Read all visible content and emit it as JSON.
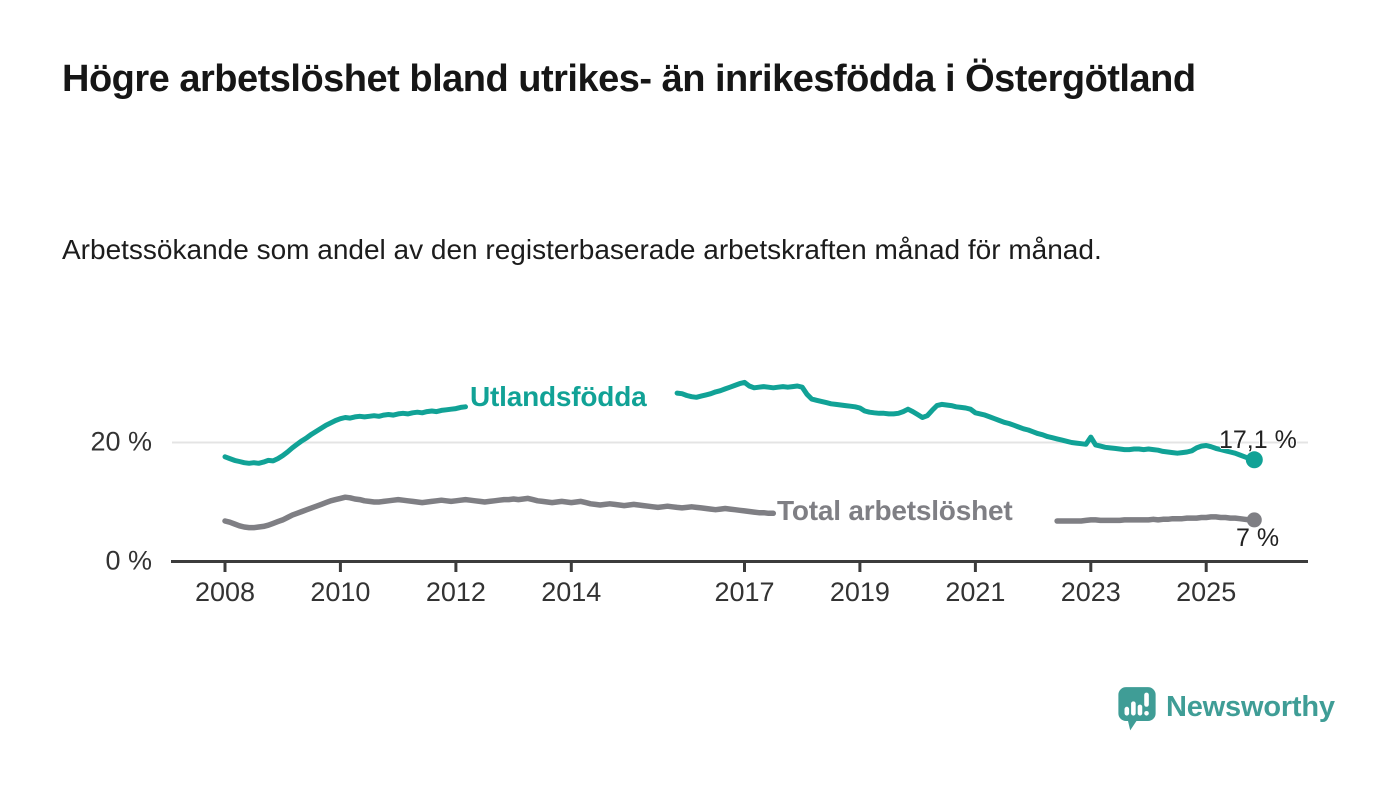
{
  "header": {
    "title": "Högre arbetslöshet bland utrikes- än inrikesfödda i Östergötland",
    "subtitle": "Arbetssökande som andel av den registerbaserade arbetskraften månad för månad."
  },
  "chart_data": {
    "type": "line",
    "x_unit": "month",
    "x_start": "2008-01",
    "x_end": "2025-11",
    "ylim": [
      0,
      32
    ],
    "grid": "single horizontal gridline at 20 %, baseline axis at 0 %",
    "legend_position": "inline labels interrupting the lines; value labels at line ends",
    "axis_color": "#3c3c3c",
    "grid_color": "#e4e4e4",
    "y_ticks": [
      {
        "value": 20,
        "label": "20 %",
        "gridline": true
      },
      {
        "value": 0,
        "label": "0 %",
        "axisline": true
      }
    ],
    "x_ticks": [
      {
        "label": "2008",
        "month_index": 0
      },
      {
        "label": "2010",
        "month_index": 24
      },
      {
        "label": "2012",
        "month_index": 48
      },
      {
        "label": "2014",
        "month_index": 72
      },
      {
        "label": "2017",
        "month_index": 108
      },
      {
        "label": "2019",
        "month_index": 132
      },
      {
        "label": "2021",
        "month_index": 156
      },
      {
        "label": "2023",
        "month_index": 180
      },
      {
        "label": "2025",
        "month_index": 204
      }
    ],
    "series": [
      {
        "name": "Utlandsfödda",
        "color": "#11a296",
        "end_label": "17,1 %",
        "end_value": 17.1,
        "label_gap_month_indices": [
          51,
          93
        ],
        "values": [
          17.6,
          17.3,
          17.0,
          16.8,
          16.6,
          16.5,
          16.6,
          16.5,
          16.7,
          17.0,
          16.9,
          17.3,
          17.8,
          18.4,
          19.1,
          19.7,
          20.3,
          20.8,
          21.4,
          21.9,
          22.4,
          22.9,
          23.3,
          23.7,
          24.0,
          24.2,
          24.1,
          24.3,
          24.4,
          24.3,
          24.4,
          24.5,
          24.4,
          24.6,
          24.7,
          24.6,
          24.8,
          24.9,
          24.8,
          25.0,
          25.1,
          25.0,
          25.2,
          25.3,
          25.2,
          25.4,
          25.5,
          25.6,
          25.7,
          25.9,
          26.0,
          26.1,
          26.2,
          26.2,
          26.3,
          26.3,
          26.4,
          26.4,
          26.5,
          26.5,
          26.6,
          26.7,
          26.8,
          26.9,
          27.0,
          27.1,
          27.0,
          27.1,
          27.2,
          27.3,
          27.2,
          27.4,
          27.5,
          27.6,
          27.5,
          27.7,
          27.8,
          27.7,
          27.9,
          28.0,
          27.9,
          28.0,
          28.1,
          28.0,
          28.1,
          28.2,
          28.3,
          28.2,
          28.3,
          28.4,
          28.3,
          28.4,
          28.5,
          28.4,
          28.3,
          28.2,
          27.9,
          27.7,
          27.6,
          27.8,
          28.0,
          28.2,
          28.5,
          28.7,
          29.0,
          29.3,
          29.6,
          29.9,
          30.1,
          29.5,
          29.2,
          29.3,
          29.4,
          29.3,
          29.2,
          29.3,
          29.4,
          29.3,
          29.4,
          29.5,
          29.3,
          28.1,
          27.3,
          27.1,
          26.9,
          26.7,
          26.5,
          26.4,
          26.3,
          26.2,
          26.1,
          26.0,
          25.8,
          25.3,
          25.1,
          25.0,
          24.9,
          24.9,
          24.8,
          24.8,
          24.9,
          25.2,
          25.6,
          25.2,
          24.7,
          24.2,
          24.5,
          25.4,
          26.2,
          26.4,
          26.3,
          26.2,
          26.0,
          25.9,
          25.8,
          25.6,
          25.0,
          24.8,
          24.6,
          24.3,
          24.0,
          23.7,
          23.4,
          23.2,
          22.9,
          22.6,
          22.3,
          22.1,
          21.8,
          21.5,
          21.3,
          21.0,
          20.8,
          20.6,
          20.4,
          20.2,
          20.0,
          19.9,
          19.8,
          19.7,
          20.9,
          19.6,
          19.4,
          19.2,
          19.1,
          19.0,
          18.9,
          18.8,
          18.8,
          18.9,
          18.9,
          18.8,
          18.9,
          18.8,
          18.7,
          18.5,
          18.4,
          18.3,
          18.2,
          18.3,
          18.4,
          18.6,
          19.1,
          19.4,
          19.5,
          19.3,
          19.0,
          18.8,
          18.6,
          18.4,
          18.2,
          17.9,
          17.6,
          17.3,
          17.1
        ]
      },
      {
        "name": "Total arbetslöshet",
        "color": "#7f7f84",
        "end_label": "7 %",
        "end_value": 7.0,
        "label_gap_month_indices": [
          115,
          172
        ],
        "values": [
          6.8,
          6.6,
          6.3,
          6.0,
          5.8,
          5.7,
          5.7,
          5.8,
          5.9,
          6.1,
          6.4,
          6.7,
          7.0,
          7.4,
          7.8,
          8.1,
          8.4,
          8.7,
          9.0,
          9.3,
          9.6,
          9.9,
          10.2,
          10.4,
          10.6,
          10.8,
          10.7,
          10.5,
          10.4,
          10.2,
          10.1,
          10.0,
          10.0,
          10.1,
          10.2,
          10.3,
          10.4,
          10.3,
          10.2,
          10.1,
          10.0,
          9.9,
          10.0,
          10.1,
          10.2,
          10.3,
          10.2,
          10.1,
          10.2,
          10.3,
          10.4,
          10.3,
          10.2,
          10.1,
          10.0,
          10.1,
          10.2,
          10.3,
          10.4,
          10.4,
          10.5,
          10.4,
          10.5,
          10.6,
          10.4,
          10.2,
          10.1,
          10.0,
          9.9,
          10.0,
          10.1,
          10.0,
          9.9,
          10.0,
          10.1,
          9.9,
          9.7,
          9.6,
          9.5,
          9.6,
          9.7,
          9.6,
          9.5,
          9.4,
          9.5,
          9.6,
          9.5,
          9.4,
          9.3,
          9.2,
          9.1,
          9.2,
          9.3,
          9.2,
          9.1,
          9.0,
          9.1,
          9.2,
          9.1,
          9.0,
          8.9,
          8.8,
          8.7,
          8.8,
          8.9,
          8.8,
          8.7,
          8.6,
          8.5,
          8.4,
          8.3,
          8.2,
          8.2,
          8.1,
          8.1,
          8.1,
          8.0,
          8.0,
          7.9,
          7.9,
          7.8,
          7.8,
          7.7,
          7.7,
          7.6,
          7.6,
          7.5,
          7.5,
          7.5,
          7.4,
          7.4,
          7.4,
          7.4,
          7.3,
          7.3,
          7.3,
          7.3,
          7.3,
          7.3,
          7.3,
          7.3,
          7.3,
          7.3,
          7.3,
          7.3,
          7.3,
          7.6,
          8.2,
          8.6,
          8.7,
          8.6,
          8.5,
          8.4,
          8.2,
          8.1,
          8.0,
          7.9,
          7.8,
          7.7,
          7.6,
          7.5,
          7.4,
          7.4,
          7.3,
          7.3,
          7.2,
          7.2,
          7.1,
          7.1,
          7.0,
          6.9,
          6.9,
          6.8,
          6.8,
          6.8,
          6.8,
          6.8,
          6.8,
          6.8,
          6.9,
          7.0,
          7.0,
          6.9,
          6.9,
          6.9,
          6.9,
          6.9,
          7.0,
          7.0,
          7.0,
          7.0,
          7.0,
          7.0,
          7.1,
          7.0,
          7.1,
          7.1,
          7.2,
          7.2,
          7.2,
          7.3,
          7.3,
          7.3,
          7.4,
          7.4,
          7.5,
          7.5,
          7.4,
          7.4,
          7.3,
          7.3,
          7.2,
          7.1,
          7.0,
          7.0
        ]
      }
    ]
  },
  "branding": {
    "wordmark": "Newsworthy",
    "brand_color": "#3f9d96",
    "logo_icon": "speech-bubble-bar-chart-icon"
  }
}
